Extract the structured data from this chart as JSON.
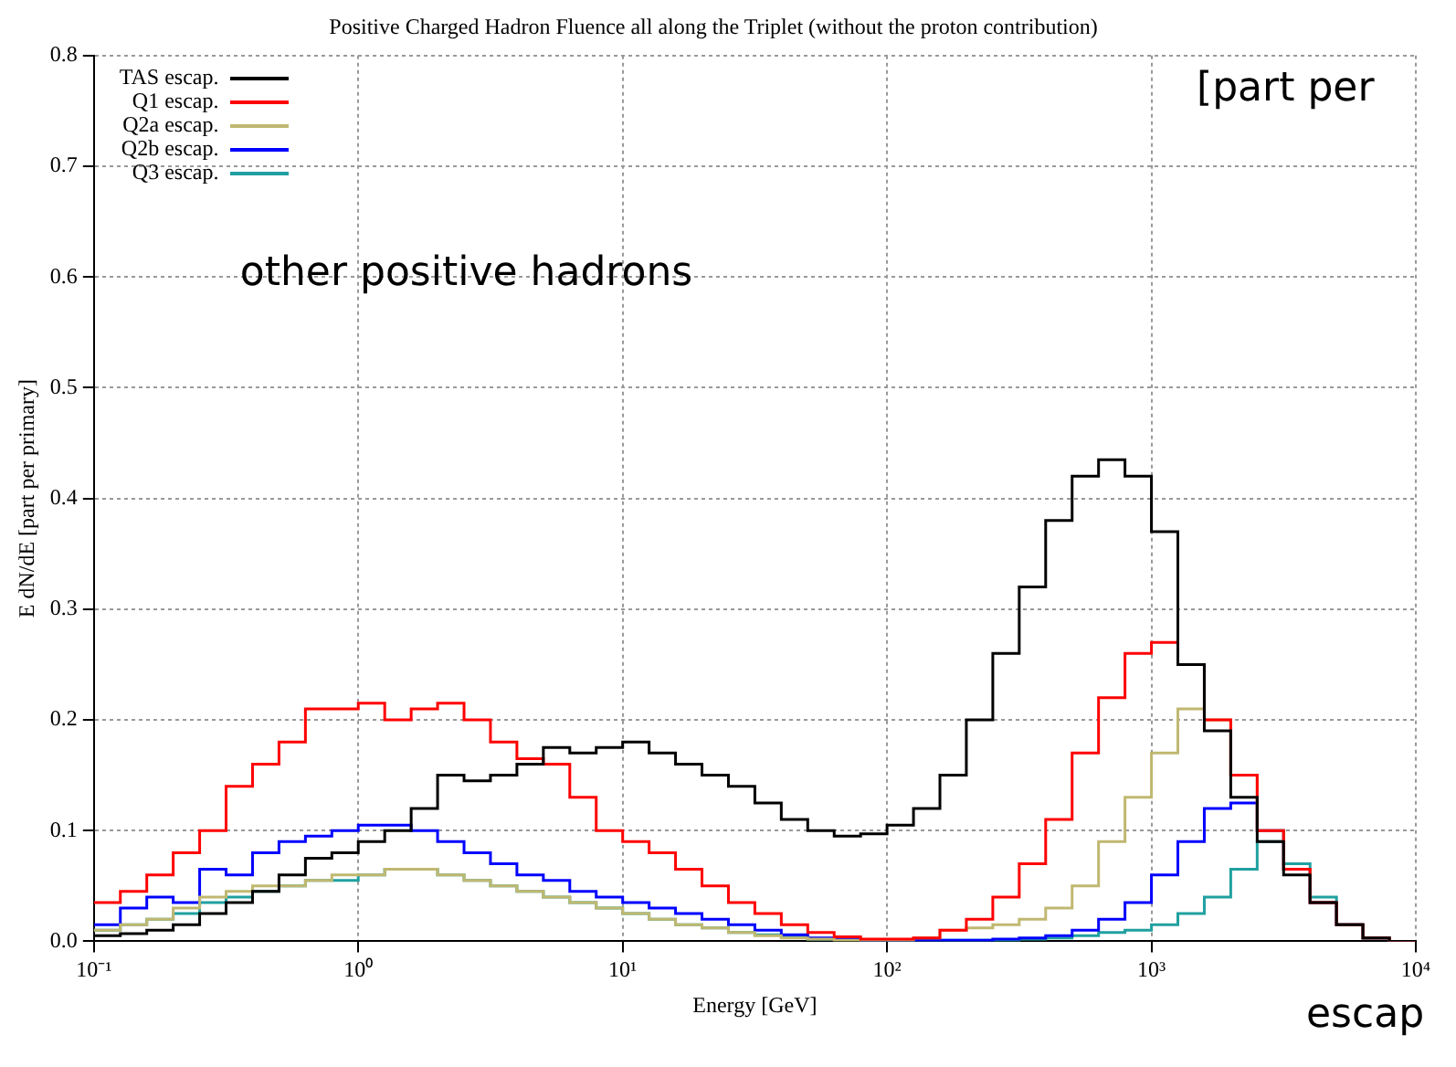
{
  "chart_data": {
    "type": "histogram",
    "title": "Positive Charged Hadron Fluence all along the Triplet (without the proton contribution)",
    "xlabel": "Energy [GeV]",
    "ylabel": "E dN/dE [part per primary]",
    "annotations": [
      "other positive hadrons",
      "[part per",
      "escap"
    ],
    "log": "x",
    "grid": true,
    "legend": "top left",
    "xlim": [
      0.1,
      10000
    ],
    "xticks": [
      {
        "value": 0.1,
        "label": "10⁻¹"
      },
      {
        "value": 1,
        "label": "10⁰"
      },
      {
        "value": 10,
        "label": "10¹"
      },
      {
        "value": 100,
        "label": "10²"
      },
      {
        "value": 1000,
        "label": "10³"
      },
      {
        "value": 10000,
        "label": "10⁴"
      }
    ],
    "ylim": [
      0,
      0.8
    ],
    "yticks": [
      {
        "value": 0,
        "label": "0.0"
      },
      0.1,
      0.2,
      0.3,
      0.4,
      0.5,
      0.6,
      0.7,
      0.8
    ],
    "bins": [
      0.1,
      0.1259,
      0.1585,
      0.1995,
      0.2512,
      0.3162,
      0.3981,
      0.5012,
      0.631,
      0.7943,
      1,
      1.259,
      1.585,
      1.995,
      2.512,
      3.162,
      3.981,
      5.012,
      6.31,
      7.943,
      10,
      12.59,
      15.85,
      19.95,
      25.12,
      31.62,
      39.81,
      50.12,
      63.1,
      79.43,
      100,
      125.9,
      158.5,
      199.5,
      251.2,
      316.2,
      398.1,
      501.2,
      631,
      794.3,
      1000,
      1259,
      1585,
      1995,
      2512,
      3162,
      3981,
      5012,
      6310,
      7943,
      10000
    ],
    "series": [
      {
        "name": "TAS escap.",
        "color": "#000000",
        "values": [
          0.005,
          0.007,
          0.01,
          0.015,
          0.025,
          0.035,
          0.045,
          0.06,
          0.075,
          0.08,
          0.09,
          0.1,
          0.12,
          0.15,
          0.145,
          0.15,
          0.16,
          0.175,
          0.17,
          0.175,
          0.18,
          0.17,
          0.16,
          0.15,
          0.14,
          0.125,
          0.11,
          0.1,
          0.095,
          0.097,
          0.105,
          0.12,
          0.15,
          0.2,
          0.26,
          0.32,
          0.38,
          0.42,
          0.435,
          0.42,
          0.37,
          0.25,
          0.19,
          0.13,
          0.09,
          0.06,
          0.035,
          0.015,
          0.003,
          0
        ]
      },
      {
        "name": "Q1 escap.",
        "color": "#ff0000",
        "values": [
          0.035,
          0.045,
          0.06,
          0.08,
          0.1,
          0.14,
          0.16,
          0.18,
          0.21,
          0.21,
          0.215,
          0.2,
          0.21,
          0.215,
          0.2,
          0.18,
          0.165,
          0.16,
          0.13,
          0.1,
          0.09,
          0.08,
          0.065,
          0.05,
          0.035,
          0.025,
          0.015,
          0.008,
          0.004,
          0.002,
          0.002,
          0.003,
          0.01,
          0.02,
          0.04,
          0.07,
          0.11,
          0.17,
          0.22,
          0.26,
          0.27,
          0.25,
          0.2,
          0.15,
          0.1,
          0.065,
          0.035,
          0.015,
          0.003,
          0
        ]
      },
      {
        "name": "Q2a escap.",
        "color": "#c0b870",
        "values": [
          0.01,
          0.015,
          0.02,
          0.03,
          0.04,
          0.045,
          0.05,
          0.05,
          0.055,
          0.06,
          0.06,
          0.065,
          0.065,
          0.06,
          0.055,
          0.05,
          0.045,
          0.04,
          0.035,
          0.03,
          0.025,
          0.02,
          0.015,
          0.012,
          0.008,
          0.005,
          0.003,
          0.002,
          0.001,
          0.001,
          0.001,
          0.003,
          0.01,
          0.012,
          0.015,
          0.02,
          0.03,
          0.05,
          0.09,
          0.13,
          0.17,
          0.21,
          0.2,
          0.15,
          0.1,
          0.065,
          0.035,
          0.015,
          0.003,
          0
        ]
      },
      {
        "name": "Q2b escap.",
        "color": "#0000ff",
        "values": [
          0.015,
          0.03,
          0.04,
          0.035,
          0.065,
          0.06,
          0.08,
          0.09,
          0.095,
          0.1,
          0.105,
          0.105,
          0.1,
          0.09,
          0.08,
          0.07,
          0.06,
          0.055,
          0.045,
          0.04,
          0.035,
          0.03,
          0.025,
          0.02,
          0.015,
          0.01,
          0.006,
          0.003,
          0.002,
          0.001,
          0.001,
          0.001,
          0.001,
          0.001,
          0.002,
          0.003,
          0.005,
          0.01,
          0.02,
          0.035,
          0.06,
          0.09,
          0.12,
          0.125,
          0.1,
          0.065,
          0.035,
          0.015,
          0.003,
          0
        ]
      },
      {
        "name": "Q3 escap.",
        "color": "#20a0a0",
        "values": [
          0.01,
          0.015,
          0.02,
          0.025,
          0.035,
          0.04,
          0.045,
          0.05,
          0.055,
          0.055,
          0.06,
          0.065,
          0.065,
          0.06,
          0.055,
          0.05,
          0.045,
          0.04,
          0.035,
          0.03,
          0.025,
          0.02,
          0.015,
          0.012,
          0.008,
          0.006,
          0.004,
          0.002,
          0.002,
          0.001,
          0.001,
          0.001,
          0.001,
          0.001,
          0.001,
          0.002,
          0.003,
          0.005,
          0.008,
          0.01,
          0.015,
          0.025,
          0.04,
          0.065,
          0.09,
          0.07,
          0.04,
          0.015,
          0.003,
          0
        ]
      }
    ]
  }
}
